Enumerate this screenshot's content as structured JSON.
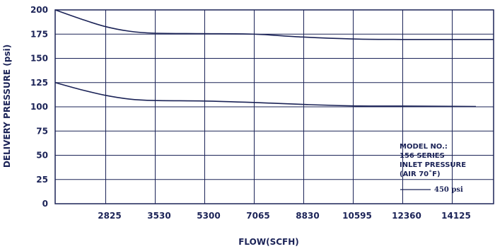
{
  "chart_data": {
    "type": "line",
    "xlabel": "FLOW(SCFH)",
    "ylabel": "DELIVERY PRESSURE (psi)",
    "ylim": [
      0,
      200
    ],
    "yticks": [
      0,
      25,
      50,
      75,
      100,
      125,
      150,
      175,
      200
    ],
    "xtick_labels": [
      "2825",
      "3530",
      "5300",
      "7065",
      "8830",
      "10595",
      "12360",
      "14125"
    ],
    "grid": true,
    "series": [
      {
        "x_pos": [
          0,
          0.5,
          1.0,
          1.5,
          2,
          3,
          4,
          5,
          6,
          7,
          8,
          9
        ],
        "values": [
          200,
          191,
          183,
          178,
          176,
          175.5,
          175,
          172,
          170,
          169.5,
          169.5,
          169.5
        ]
      },
      {
        "x_pos": [
          0,
          0.5,
          1.0,
          1.5,
          2,
          3,
          4,
          5,
          6,
          7,
          8,
          8.5
        ],
        "values": [
          125,
          118,
          112,
          108,
          106.5,
          106,
          104.5,
          102.5,
          101,
          100.8,
          100.5,
          100.3
        ]
      }
    ],
    "annotation": {
      "lines": [
        "MODEL NO.:",
        "156 SERIES",
        "INLET PRESSURE",
        "(AIR 70˚F)"
      ],
      "legend_label": "450 psi"
    }
  }
}
